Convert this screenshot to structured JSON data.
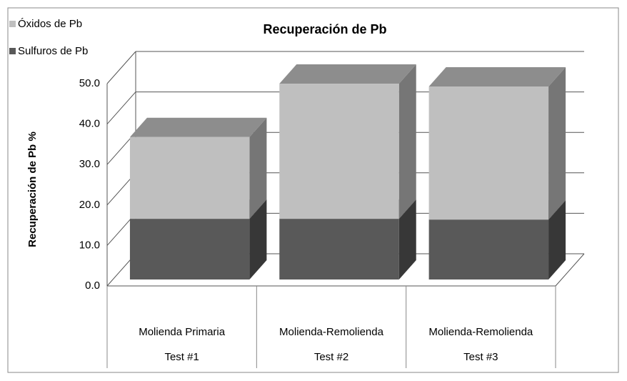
{
  "chart_data": {
    "type": "bar3d-stacked",
    "title": "Recuperación de Pb",
    "y_label": "Recuperación de Pb %",
    "categories": [
      [
        "Molienda Primaria",
        "Test #1"
      ],
      [
        "Molienda-Remolienda",
        "Test #2"
      ],
      [
        "Molienda-Remolienda",
        "Test #3"
      ]
    ],
    "series": [
      {
        "name": "Sulfuros de Pb",
        "color": "#595959",
        "values": [
          15.0,
          15.0,
          14.8
        ]
      },
      {
        "name": "Óxidos de Pb",
        "color": "#bfbfbf",
        "values": [
          20.2,
          33.4,
          32.9
        ]
      }
    ],
    "ylim": [
      0,
      50
    ],
    "yticks": [
      {
        "value": 0,
        "label": "0.0"
      },
      {
        "value": 10,
        "label": "10.0"
      },
      {
        "value": 20,
        "label": "20.0"
      },
      {
        "value": 30,
        "label": "30.0"
      },
      {
        "value": 40,
        "label": "40.0"
      },
      {
        "value": 50,
        "label": "50.0"
      }
    ],
    "grid": true
  }
}
